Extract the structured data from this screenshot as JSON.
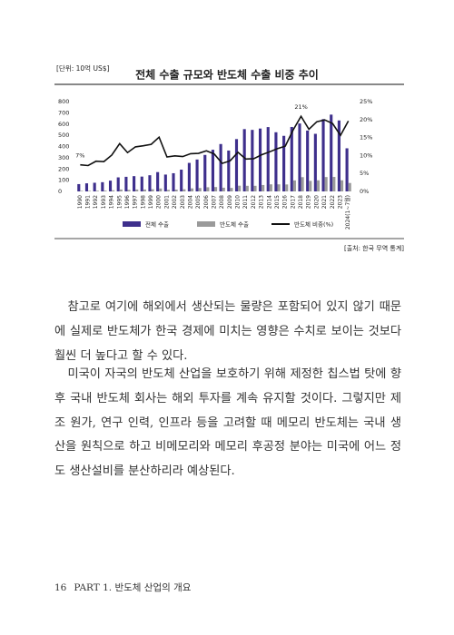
{
  "chart_data": {
    "type": "bar-line",
    "title": "전체 수출 규모와 반도체 수출 비중 추이",
    "unit": "[단위: 10억 US$]",
    "source": "[출처: 한국 무역 통계]",
    "categories": [
      "1990",
      "1991",
      "1992",
      "1993",
      "1994",
      "1995",
      "1996",
      "1997",
      "1998",
      "1999",
      "2000",
      "2001",
      "2002",
      "2003",
      "2004",
      "2005",
      "2006",
      "2007",
      "2008",
      "2009",
      "2010",
      "2011",
      "2012",
      "2013",
      "2014",
      "2015",
      "2016",
      "2017",
      "2018",
      "2019",
      "2020",
      "2021",
      "2022",
      "2023",
      "2024(1~7월)"
    ],
    "series": [
      {
        "name": "전체 수출",
        "type": "bar",
        "color": "#3e2f8c",
        "values": [
          65,
          72,
          77,
          82,
          96,
          125,
          130,
          136,
          132,
          144,
          172,
          150,
          162,
          194,
          254,
          284,
          325,
          371,
          422,
          364,
          466,
          555,
          548,
          560,
          573,
          527,
          495,
          574,
          605,
          542,
          513,
          644,
          684,
          632,
          384
        ]
      },
      {
        "name": "반도체 수출",
        "type": "bar",
        "color": "#9a9a9a",
        "values": [
          5,
          5,
          6,
          7,
          10,
          17,
          14,
          17,
          17,
          19,
          26,
          14,
          16,
          19,
          27,
          30,
          37,
          39,
          33,
          31,
          51,
          50,
          50,
          57,
          63,
          63,
          62,
          98,
          127,
          94,
          99,
          128,
          129,
          99,
          75
        ]
      },
      {
        "name": "반도체 비중(%)",
        "type": "line",
        "axis": "y2",
        "color": "#111111",
        "values": [
          7.4,
          7.2,
          8.4,
          8.3,
          10.1,
          13.3,
          10.8,
          12.4,
          12.7,
          13.1,
          15.1,
          9.6,
          9.9,
          9.7,
          10.5,
          10.6,
          11.3,
          10.4,
          7.8,
          8.5,
          10.9,
          9.0,
          9.1,
          10.2,
          11.0,
          11.9,
          12.6,
          17.1,
          20.9,
          17.3,
          19.4,
          19.9,
          18.9,
          15.6,
          19.6
        ]
      }
    ],
    "annotations": [
      {
        "text": "7%",
        "category": "1990"
      },
      {
        "text": "21%",
        "category": "2018"
      }
    ],
    "ylim": [
      0,
      800
    ],
    "yticks": [
      0,
      100,
      200,
      300,
      400,
      500,
      600,
      700,
      800
    ],
    "y2lim": [
      0,
      25
    ],
    "y2ticks": [
      {
        "value": 0,
        "label": "0%"
      },
      {
        "value": 5,
        "label": "5%"
      },
      {
        "value": 10,
        "label": "10%"
      },
      {
        "value": 15,
        "label": "15%"
      },
      {
        "value": 20,
        "label": "20%"
      },
      {
        "value": 25,
        "label": "25%"
      }
    ],
    "grid": false,
    "legend": "bottom"
  },
  "body": {
    "paragraphs": [
      "참고로 여기에 해외에서 생산되는 물량은 포함되어 있지 않기 때문에 실제로 반도체가 한국 경제에 미치는 영향은 수치로 보이는 것보다 훨씬 더 높다고 할 수 있다.",
      "미국이 자국의 반도체 산업을 보호하기 위해 제정한 칩스법 탓에 향후 국내 반도체 회사는 해외 투자를 계속 유지할 것이다. 그렇지만 제조 원가, 연구 인력, 인프라 등을 고려할 때 메모리 반도체는 국내 생산을 원칙으로 하고 비메모리와 메모리 후공정 분야는 미국에 어느 정도 생산설비를 분산하리라 예상된다."
    ]
  },
  "footer": {
    "page": "16",
    "section": "PART 1. 반도체 산업의 개요"
  }
}
